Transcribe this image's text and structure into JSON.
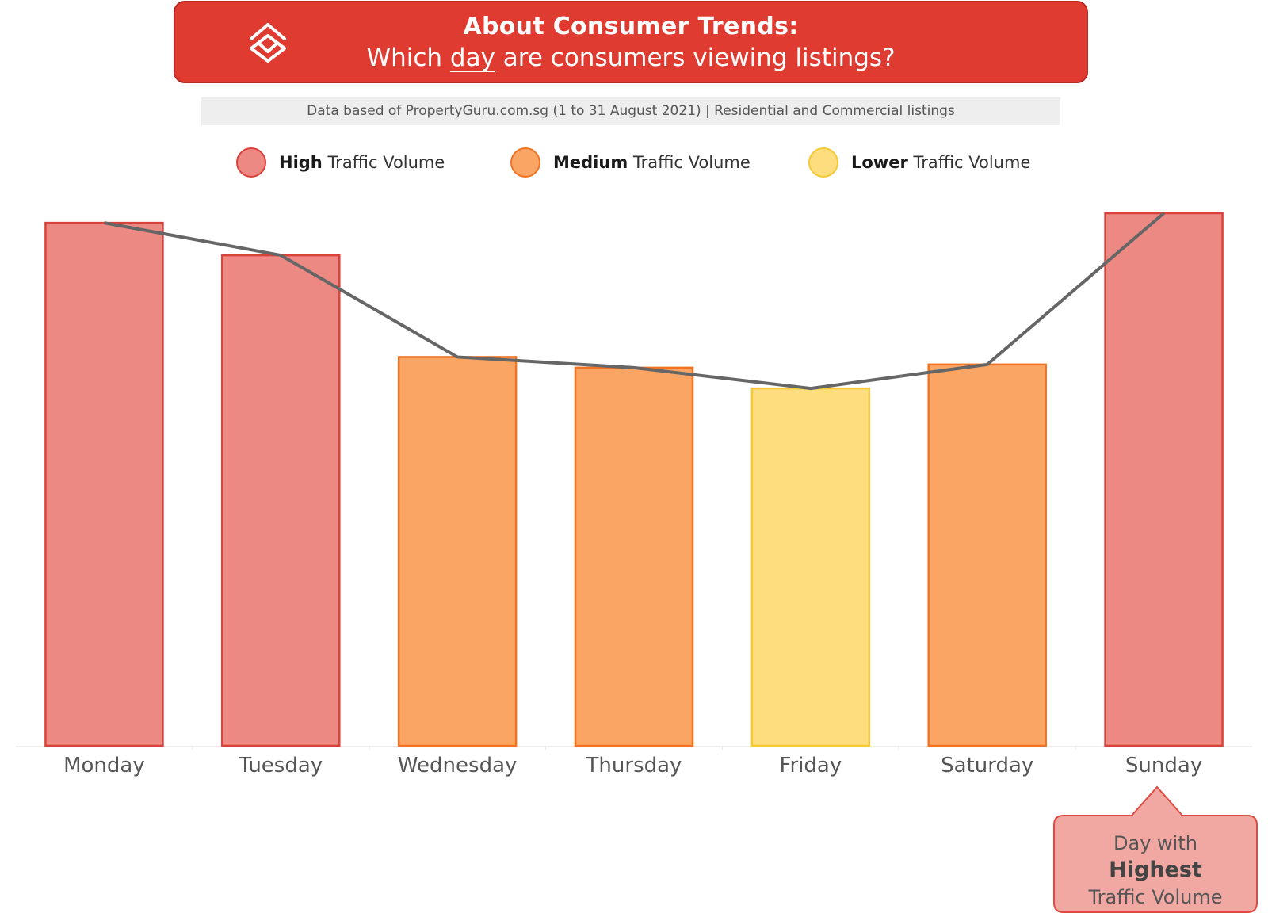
{
  "banner": {
    "title": "About Consumer Trends:",
    "q_before": "Which ",
    "q_emph": "day",
    "q_after": " are consumers viewing listings?",
    "bg": "#e03b30"
  },
  "source_note": "Data based of PropertyGuru.com.sg (1 to 31 August 2021) | Residential and Commercial listings",
  "legend": [
    {
      "bold": "High",
      "rest": " Traffic Volume",
      "fill": "#ec8982",
      "stroke": "#d9423b"
    },
    {
      "bold": "Medium",
      "rest": " Traffic Volume",
      "fill": "#fba565",
      "stroke": "#f07424"
    },
    {
      "bold": "Lower",
      "rest": " Traffic Volume",
      "fill": "#fedd7f",
      "stroke": "#f7c936"
    }
  ],
  "chart_data": {
    "type": "bar",
    "categories": [
      "Monday",
      "Tuesday",
      "Wednesday",
      "Thursday",
      "Friday",
      "Saturday",
      "Sunday"
    ],
    "values": [
      98.2,
      92.1,
      73,
      71,
      67.1,
      71.6,
      100
    ],
    "levels": [
      "High",
      "High",
      "Medium",
      "Medium",
      "Lower",
      "Medium",
      "High"
    ],
    "ylim": [
      0,
      100
    ],
    "trend_line": true,
    "grid": false,
    "legend_position": "top"
  },
  "callout": {
    "line1": "Day with",
    "line2": "Highest",
    "line3": "Traffic Volume",
    "fill": "#f1a8a3",
    "stroke": "#e04a42"
  }
}
